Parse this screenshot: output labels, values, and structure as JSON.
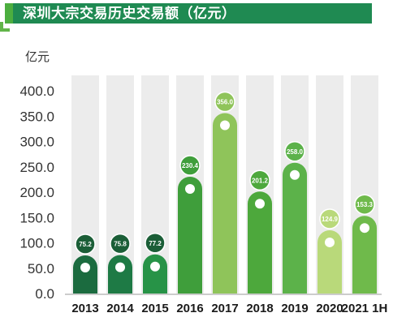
{
  "header": {
    "title": "深圳大宗交易历史交易额（亿元）"
  },
  "colors": {
    "title_bg": "#1f8a52",
    "accent": "#4cae3f",
    "bg_column": "#ececec",
    "bars": [
      "#1b6b3f",
      "#1e7a45",
      "#279347",
      "#3f9e3b",
      "#8fc45a",
      "#4da83c",
      "#5cb24a",
      "#b9d97a",
      "#6fba4b"
    ]
  },
  "chart_data": {
    "type": "bar",
    "title": "深圳大宗交易历史交易额（亿元）",
    "unit_label": "亿元",
    "categories": [
      "2013",
      "2014",
      "2015",
      "2016",
      "2017",
      "2018",
      "2019",
      "2020",
      "2021 1H"
    ],
    "values": [
      75.2,
      75.8,
      77.2,
      230.4,
      356.0,
      201.2,
      258.0,
      124.9,
      153.3
    ],
    "value_labels": [
      "75.2",
      "75.8",
      "77.2",
      "230.4",
      "356.0",
      "201.2",
      "258.0",
      "124.9",
      "153.3"
    ],
    "ylim": [
      0,
      400
    ],
    "yticks": [
      "0.0",
      "50.0",
      "100.0",
      "150.0",
      "200.0",
      "250.0",
      "300.0",
      "350.0",
      "400.0"
    ],
    "ytick_values": [
      0,
      50,
      100,
      150,
      200,
      250,
      300,
      350,
      400
    ],
    "grid": false,
    "legend": "none"
  }
}
